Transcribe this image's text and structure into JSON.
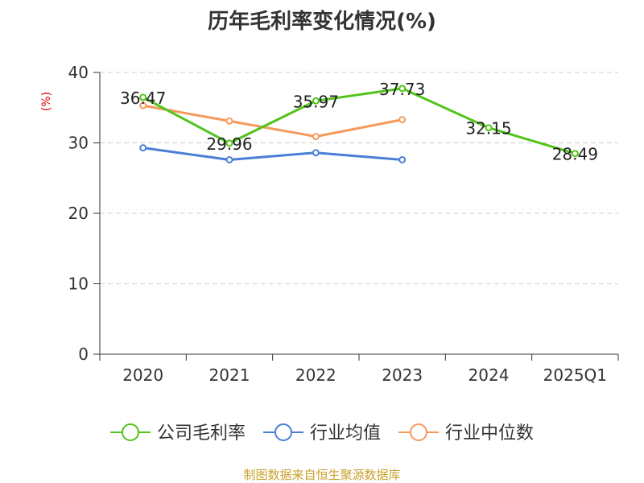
{
  "chart_data": {
    "type": "line",
    "title": "历年毛利率变化情况(%)",
    "ylabel": "(%)",
    "categories": [
      "2020",
      "2021",
      "2022",
      "2023",
      "2024",
      "2025Q1"
    ],
    "ylim": [
      0,
      40
    ],
    "yticks": [
      0,
      10,
      20,
      30,
      40
    ],
    "grid": true,
    "legend_position": "bottom",
    "series": [
      {
        "name": "公司毛利率",
        "color": "#52c41a",
        "values": [
          36.47,
          29.96,
          35.97,
          37.73,
          32.15,
          28.49
        ],
        "labels": [
          "36.47",
          "29.96",
          "35.97",
          "37.73",
          "32.15",
          "28.49"
        ]
      },
      {
        "name": "行业均值",
        "color": "#4a7fd6",
        "values": [
          29.3,
          27.6,
          28.6,
          27.6,
          null,
          null
        ]
      },
      {
        "name": "行业中位数",
        "color": "#f59a5b",
        "values": [
          35.3,
          33.1,
          30.9,
          33.3,
          null,
          null
        ]
      }
    ]
  },
  "source": "制图数据来自恒生聚源数据库"
}
